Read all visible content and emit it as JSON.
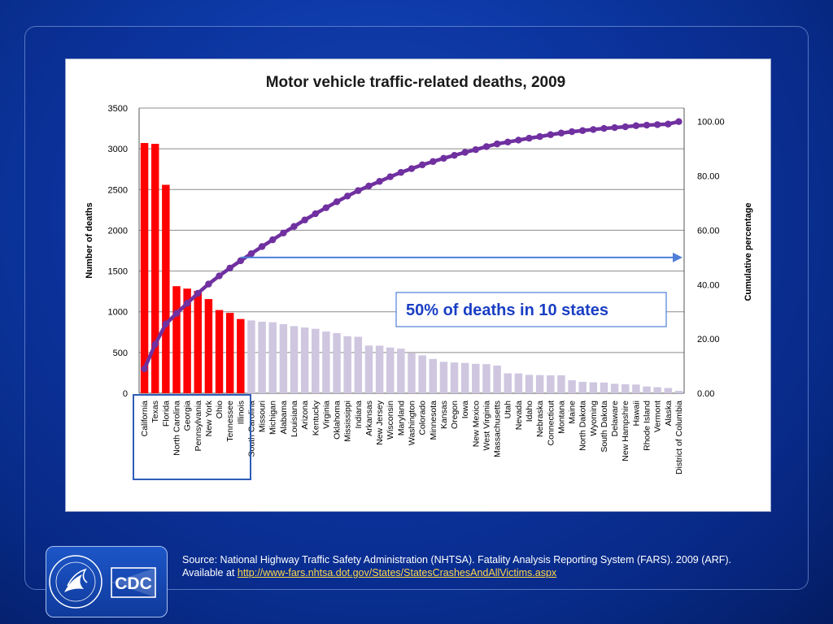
{
  "source": {
    "line1": "Source: National Highway Traffic Safety Administration (NHTSA). Fatality Analysis Reporting System (FARS). 2009 (ARF).",
    "available_prefix": "Available at ",
    "link_text": "http://www-fars.nhtsa.dot.gov/States/StatesCrashesAndAllVictims.aspx"
  },
  "logo": {
    "text": "CDC",
    "seal_icon": "hhs-seal-icon"
  },
  "colors": {
    "highlight_bar": "#ff0000",
    "other_bar": "#cfc6e0",
    "cumulative_line": "#7030a0",
    "annotation": "#1a3fc4",
    "arrow": "#4f7fd9"
  },
  "chart_data": {
    "type": "bar",
    "title": "Motor vehicle traffic-related deaths, 2009",
    "ylabel": "Number of deaths",
    "y2label": "Cumulative percentage",
    "ylim": [
      0,
      3500
    ],
    "yticks": [
      "0",
      "500",
      "1000",
      "1500",
      "2000",
      "2500",
      "3000",
      "3500"
    ],
    "y2lim": [
      0,
      105
    ],
    "y2ticks": [
      "0.00",
      "20.00",
      "40.00",
      "60.00",
      "80.00",
      "100.00"
    ],
    "grid": true,
    "highlight_count": 10,
    "annotation": "50% of deaths in 10 states",
    "arrow_level": 50,
    "categories": [
      "California",
      "Texas",
      "Florida",
      "North Carolina",
      "Georgia",
      "Pennsylvania",
      "New York",
      "Ohio",
      "Tennessee",
      "Illinois",
      "South Carolina",
      "Missouri",
      "Michigan",
      "Alabama",
      "Louisiana",
      "Arizona",
      "Kentucky",
      "Virginia",
      "Oklahoma",
      "Mississippi",
      "Indiana",
      "Arkansas",
      "New Jersey",
      "Wisconsin",
      "Maryland",
      "Washington",
      "Colorado",
      "Minnesota",
      "Kansas",
      "Oregon",
      "Iowa",
      "New Mexico",
      "West Virginia",
      "Massachusetts",
      "Utah",
      "Nevada",
      "Idaho",
      "Nebraska",
      "Connecticut",
      "Montana",
      "Maine",
      "North Dakota",
      "Wyoming",
      "South Dakota",
      "Delaware",
      "New Hampshire",
      "Hawaii",
      "Rhode Island",
      "Vermont",
      "Alaska",
      "District of Columbia"
    ],
    "series": [
      {
        "name": "Number of deaths",
        "type": "bar",
        "values": [
          3071,
          3061,
          2558,
          1314,
          1284,
          1256,
          1156,
          1021,
          986,
          911,
          894,
          878,
          871,
          848,
          824,
          807,
          791,
          757,
          738,
          700,
          693,
          585,
          584,
          561,
          547,
          492,
          465,
          421,
          386,
          377,
          372,
          361,
          357,
          340,
          244,
          243,
          226,
          223,
          220,
          221,
          159,
          140,
          134,
          131,
          116,
          110,
          107,
          83,
          74,
          64,
          29
        ]
      },
      {
        "name": "Cumulative percentage",
        "type": "line",
        "axis": "right",
        "values": [
          9.0,
          18.0,
          25.5,
          29.4,
          33.1,
          36.8,
          40.2,
          43.2,
          46.1,
          48.8,
          51.4,
          54.0,
          56.5,
          59.0,
          61.4,
          63.8,
          66.1,
          68.3,
          70.5,
          72.6,
          74.6,
          76.3,
          78.0,
          79.7,
          81.3,
          82.7,
          84.1,
          85.3,
          86.5,
          87.6,
          88.7,
          89.7,
          90.8,
          91.8,
          92.5,
          93.2,
          93.9,
          94.5,
          95.2,
          95.8,
          96.3,
          96.7,
          97.1,
          97.5,
          97.8,
          98.1,
          98.5,
          98.7,
          98.9,
          99.1,
          100.0
        ]
      }
    ]
  }
}
